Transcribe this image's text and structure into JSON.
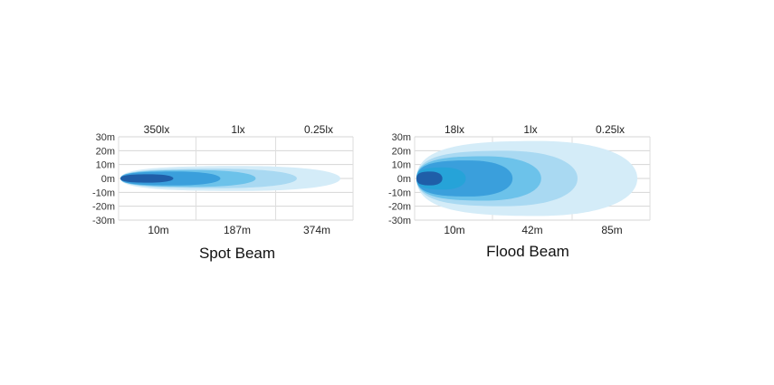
{
  "chart_data": [
    {
      "type": "area",
      "title": "Spot Beam",
      "y_ticks": [
        "30m",
        "20m",
        "10m",
        "0m",
        "-10m",
        "-20m",
        "-30m"
      ],
      "lux_labels": [
        "350lx",
        "1lx",
        "0.25lx"
      ],
      "distance_labels": [
        "10m",
        "187m",
        "374m"
      ],
      "ylim": [
        -30,
        30
      ],
      "grid": true,
      "beams": [
        {
          "reach_m": 374,
          "half_width_m": 9,
          "color": "#d4ecf8"
        },
        {
          "reach_m": 300,
          "half_width_m": 7,
          "color": "#a9d9f2"
        },
        {
          "reach_m": 230,
          "half_width_m": 6,
          "color": "#6cc2ea"
        },
        {
          "reach_m": 170,
          "half_width_m": 5,
          "color": "#3a9fdc"
        },
        {
          "reach_m": 90,
          "half_width_m": 3,
          "color": "#1f5ea8"
        }
      ]
    },
    {
      "type": "area",
      "title": "Flood Beam",
      "y_ticks": [
        "30m",
        "20m",
        "10m",
        "0m",
        "-10m",
        "-20m",
        "-30m"
      ],
      "lux_labels": [
        "18lx",
        "1lx",
        "0.25lx"
      ],
      "distance_labels": [
        "10m",
        "42m",
        "85m"
      ],
      "ylim": [
        -30,
        30
      ],
      "grid": true,
      "beams": [
        {
          "reach_m": 85,
          "half_width_m": 27,
          "color": "#d4ecf8"
        },
        {
          "reach_m": 62,
          "half_width_m": 20,
          "color": "#a9d9f2"
        },
        {
          "reach_m": 48,
          "half_width_m": 16,
          "color": "#6cc2ea"
        },
        {
          "reach_m": 37,
          "half_width_m": 13,
          "color": "#3a9fdc"
        },
        {
          "reach_m": 19,
          "half_width_m": 8,
          "color": "#26a3d8"
        },
        {
          "reach_m": 10,
          "half_width_m": 5,
          "color": "#1f5ea8"
        }
      ]
    }
  ]
}
